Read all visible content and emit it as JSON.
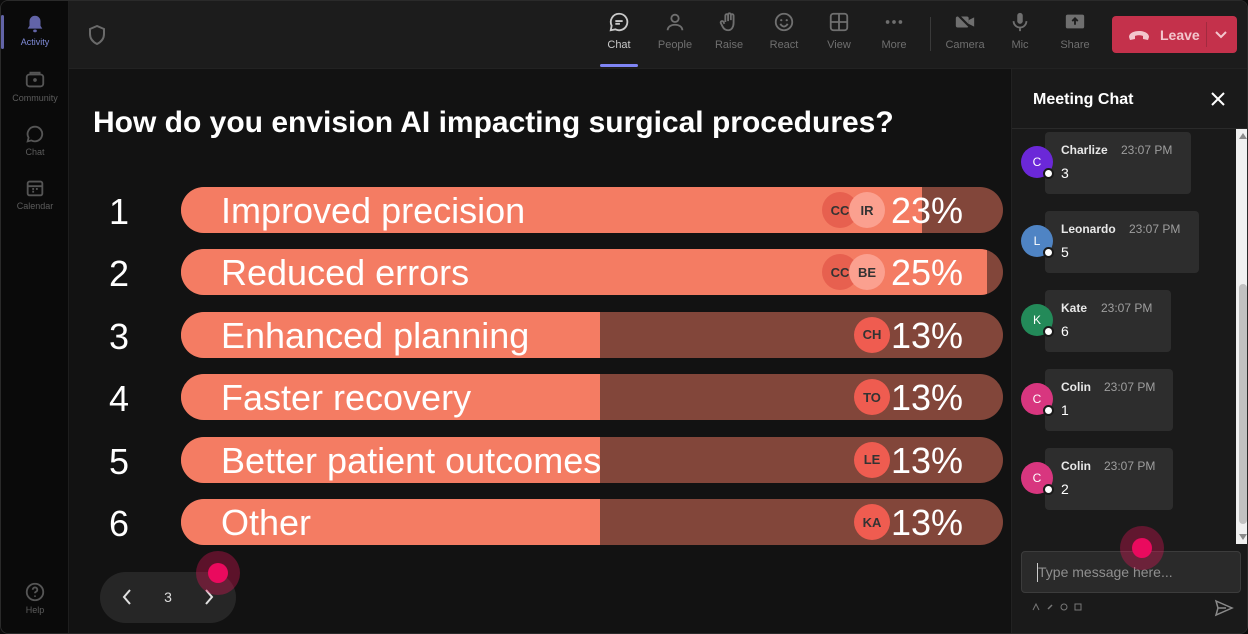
{
  "rail": {
    "items": [
      {
        "label": "Activity",
        "icon": "bell-icon"
      },
      {
        "label": "Community",
        "icon": "community-icon"
      },
      {
        "label": "Chat",
        "icon": "chat-icon"
      },
      {
        "label": "Calendar",
        "icon": "calendar-icon"
      }
    ],
    "help": "Help"
  },
  "toolbar": {
    "chat": "Chat",
    "people": "People",
    "raise": "Raise",
    "react": "React",
    "view": "View",
    "more": "More",
    "camera": "Camera",
    "mic": "Mic",
    "share": "Share",
    "leave": "Leave"
  },
  "poll": {
    "question": "How do you envision AI impacting surgical procedures?",
    "options": [
      {
        "num": "1",
        "label": "Improved precision",
        "percent": 23,
        "pct_text": "23%",
        "avatars": [
          "CC",
          "IR"
        ]
      },
      {
        "num": "2",
        "label": "Reduced errors",
        "percent": 25,
        "pct_text": "25%",
        "avatars": [
          "CC",
          "BE"
        ]
      },
      {
        "num": "3",
        "label": "Enhanced planning",
        "percent": 13,
        "pct_text": "13%",
        "avatars": [
          "CH"
        ]
      },
      {
        "num": "4",
        "label": "Faster recovery",
        "percent": 13,
        "pct_text": "13%",
        "avatars": [
          "TO"
        ]
      },
      {
        "num": "5",
        "label": "Better patient outcomes",
        "percent": 13,
        "pct_text": "13%",
        "avatars": [
          "LE"
        ]
      },
      {
        "num": "6",
        "label": "Other",
        "percent": 13,
        "pct_text": "13%",
        "avatars": [
          "KA"
        ]
      }
    ],
    "page": "3"
  },
  "chat": {
    "title": "Meeting Chat",
    "messages": [
      {
        "initial": "C",
        "name": "Charlize",
        "time": "23:07 PM",
        "text": "3",
        "color": "#6b28d8"
      },
      {
        "initial": "L",
        "name": "Leonardo",
        "time": "23:07 PM",
        "text": "5",
        "color": "#4f84c4"
      },
      {
        "initial": "K",
        "name": "Kate",
        "time": "23:07 PM",
        "text": "6",
        "color": "#238a59"
      },
      {
        "initial": "C",
        "name": "Colin",
        "time": "23:07 PM",
        "text": "1",
        "color": "#d8367f"
      },
      {
        "initial": "C",
        "name": "Colin",
        "time": "23:07 PM",
        "text": "2",
        "color": "#d8367f"
      }
    ],
    "placeholder": "Type message here..."
  },
  "colors": {
    "bar_fill": "#f47c63",
    "bar_track": "#82463a",
    "leave": "#c4314b",
    "accent": "#7f85f5",
    "click_marker": "#ea0a5e"
  }
}
